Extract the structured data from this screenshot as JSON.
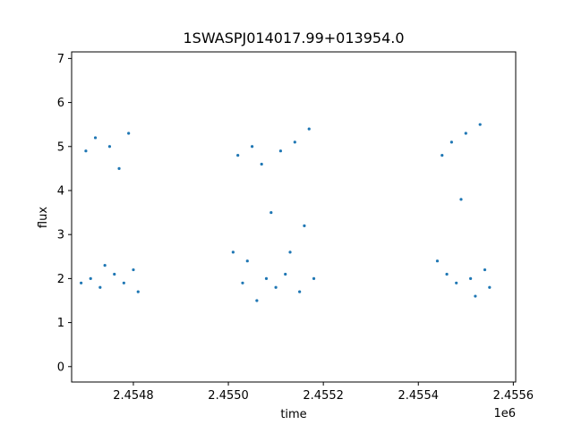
{
  "chart_data": {
    "type": "scatter",
    "title": "1SWASPJ014017.99+013954.0",
    "xlabel": "time",
    "ylabel": "flux",
    "x_offset_label": "1e6",
    "xlim": [
      2.45467,
      2.455605
    ],
    "ylim": [
      -0.35,
      7.15
    ],
    "x_ticks": [
      2.4548,
      2.455,
      2.4552,
      2.4554,
      2.4556
    ],
    "x_tick_labels": [
      "2.4548",
      "2.4550",
      "2.4552",
      "2.4554",
      "2.4556"
    ],
    "y_ticks": [
      0,
      1,
      2,
      3,
      4,
      5,
      6,
      7
    ],
    "y_tick_labels": [
      "0",
      "1",
      "2",
      "3",
      "4",
      "5",
      "6",
      "7"
    ],
    "grid": false,
    "marker_color": "#1f77b4",
    "series": [
      {
        "x": [
          2.45469,
          2.4547,
          2.45471,
          2.45472,
          2.45473,
          2.45474,
          2.45475,
          2.45476,
          2.45477,
          2.45478,
          2.45479,
          2.4548,
          2.45481,
          2.45501,
          2.45502,
          2.45503,
          2.45504,
          2.45505,
          2.45506,
          2.45507,
          2.45508,
          2.45509,
          2.4551,
          2.45511,
          2.45512,
          2.45513,
          2.45514,
          2.45515,
          2.45516,
          2.45517,
          2.45518,
          2.45544,
          2.45545,
          2.45546,
          2.45547,
          2.45548,
          2.45549,
          2.4555,
          2.45551,
          2.45552,
          2.45553,
          2.45554,
          2.45555
        ],
        "y": [
          1.9,
          4.9,
          2.0,
          5.2,
          1.8,
          2.3,
          5.0,
          2.1,
          4.5,
          1.9,
          5.3,
          2.2,
          1.7,
          2.6,
          4.8,
          1.9,
          2.4,
          5.0,
          1.5,
          4.6,
          2.0,
          3.5,
          1.8,
          4.9,
          2.1,
          2.6,
          5.1,
          1.7,
          3.2,
          5.4,
          2.0,
          2.4,
          4.8,
          2.1,
          5.1,
          1.9,
          3.8,
          5.3,
          2.0,
          1.6,
          5.5,
          2.2,
          1.8
        ]
      }
    ]
  }
}
